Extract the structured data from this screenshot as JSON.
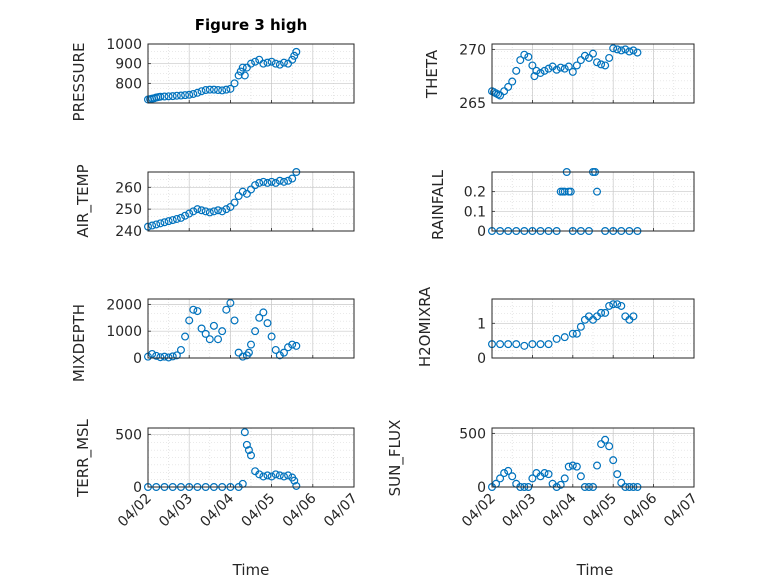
{
  "chart_data": [
    {
      "type": "scatter",
      "title": "Figure 3 high",
      "ylabel": "PRESSURE",
      "ylim": [
        700,
        1000
      ],
      "yticks": [
        "800",
        "900",
        "1000"
      ],
      "x": [
        0,
        0.05,
        0.1,
        0.15,
        0.2,
        0.25,
        0.3,
        0.4,
        0.5,
        0.6,
        0.7,
        0.8,
        0.9,
        1.0,
        1.1,
        1.2,
        1.3,
        1.4,
        1.5,
        1.6,
        1.7,
        1.8,
        1.9,
        2.0,
        2.1,
        2.2,
        2.25,
        2.3,
        2.35,
        2.4,
        2.5,
        2.6,
        2.7,
        2.8,
        2.9,
        3.0,
        3.1,
        3.2,
        3.3,
        3.4,
        3.5,
        3.55,
        3.6
      ],
      "values": [
        718,
        720,
        722,
        724,
        728,
        730,
        732,
        733,
        734,
        735,
        737,
        738,
        740,
        742,
        746,
        752,
        760,
        766,
        768,
        768,
        766,
        764,
        768,
        772,
        800,
        840,
        860,
        880,
        840,
        880,
        900,
        910,
        920,
        900,
        905,
        910,
        900,
        895,
        905,
        900,
        920,
        940,
        960
      ]
    },
    {
      "type": "scatter",
      "ylabel": "THETA",
      "ylim": [
        265,
        270.5
      ],
      "yticks": [
        "265",
        "270"
      ],
      "x": [
        0,
        0.05,
        0.1,
        0.15,
        0.2,
        0.3,
        0.4,
        0.5,
        0.6,
        0.7,
        0.8,
        0.9,
        1.0,
        1.05,
        1.1,
        1.2,
        1.3,
        1.4,
        1.5,
        1.6,
        1.7,
        1.8,
        1.9,
        2.0,
        2.1,
        2.2,
        2.3,
        2.4,
        2.5,
        2.6,
        2.7,
        2.8,
        2.9,
        3.0,
        3.1,
        3.2,
        3.3,
        3.4,
        3.5,
        3.6
      ],
      "values": [
        266.1,
        266.0,
        265.9,
        265.8,
        265.7,
        266.1,
        266.5,
        267.0,
        268.0,
        269.0,
        269.5,
        269.3,
        268.5,
        267.5,
        268.0,
        267.8,
        268.0,
        268.2,
        268.4,
        268.1,
        268.3,
        268.2,
        268.4,
        267.9,
        268.5,
        269.0,
        269.4,
        269.2,
        269.6,
        268.8,
        268.6,
        268.5,
        269.2,
        270.1,
        270.0,
        269.9,
        270.0,
        269.8,
        269.9,
        269.7
      ]
    },
    {
      "type": "scatter",
      "ylabel": "AIR_TEMP",
      "ylim": [
        240,
        267
      ],
      "yticks": [
        "240",
        "250",
        "260"
      ],
      "x": [
        0,
        0.1,
        0.2,
        0.3,
        0.4,
        0.5,
        0.6,
        0.7,
        0.8,
        0.9,
        1.0,
        1.1,
        1.2,
        1.3,
        1.4,
        1.5,
        1.6,
        1.7,
        1.8,
        1.9,
        2.0,
        2.1,
        2.2,
        2.3,
        2.4,
        2.5,
        2.6,
        2.7,
        2.8,
        2.9,
        3.0,
        3.1,
        3.2,
        3.3,
        3.4,
        3.5,
        3.6
      ],
      "values": [
        242,
        242.5,
        243,
        243.5,
        244,
        244.5,
        245,
        245.5,
        246,
        247,
        248,
        249,
        250,
        249.5,
        249,
        248.5,
        249,
        249.5,
        249,
        250,
        251,
        253,
        256,
        258,
        257,
        259,
        261,
        262,
        262.5,
        262,
        262.5,
        262,
        263,
        262.5,
        263,
        264,
        267
      ]
    },
    {
      "type": "scatter",
      "ylabel": "RAINFALL",
      "ylim": [
        0,
        0.3
      ],
      "yticks": [
        "0",
        "0.1",
        "0.2"
      ],
      "x": [
        0,
        0.2,
        0.4,
        0.6,
        0.8,
        1.0,
        1.2,
        1.4,
        1.6,
        1.7,
        1.75,
        1.8,
        1.85,
        1.9,
        1.95,
        2.0,
        2.2,
        2.4,
        2.5,
        2.55,
        2.6,
        2.8,
        3.0,
        3.2,
        3.4,
        3.6
      ],
      "values": [
        0,
        0,
        0,
        0,
        0,
        0,
        0,
        0,
        0,
        0.2,
        0.2,
        0.2,
        0.3,
        0.2,
        0.2,
        0,
        0,
        0,
        0.3,
        0.3,
        0.2,
        0,
        0,
        0,
        0,
        0
      ]
    },
    {
      "type": "scatter",
      "ylabel": "MIXDEPTH",
      "ylim": [
        0,
        2200
      ],
      "yticks": [
        "0",
        "1000",
        "2000"
      ],
      "x": [
        0,
        0.1,
        0.2,
        0.3,
        0.4,
        0.5,
        0.6,
        0.7,
        0.8,
        0.9,
        1.0,
        1.1,
        1.2,
        1.3,
        1.4,
        1.5,
        1.6,
        1.7,
        1.8,
        1.9,
        2.0,
        2.1,
        2.2,
        2.3,
        2.4,
        2.45,
        2.5,
        2.6,
        2.7,
        2.8,
        2.9,
        3.0,
        3.1,
        3.2,
        3.3,
        3.4,
        3.5,
        3.6
      ],
      "values": [
        50,
        150,
        80,
        30,
        50,
        20,
        60,
        100,
        300,
        800,
        1400,
        1800,
        1750,
        1100,
        900,
        700,
        1200,
        700,
        1000,
        1800,
        2050,
        1400,
        200,
        50,
        100,
        200,
        500,
        1000,
        1500,
        1700,
        1300,
        800,
        300,
        100,
        200,
        400,
        500,
        450
      ]
    },
    {
      "type": "scatter",
      "ylabel": "H2OMIXRA",
      "ylim": [
        0,
        1.7
      ],
      "yticks": [
        "0",
        "1"
      ],
      "x": [
        0,
        0.2,
        0.4,
        0.6,
        0.8,
        1.0,
        1.2,
        1.4,
        1.6,
        1.8,
        2.0,
        2.1,
        2.2,
        2.3,
        2.4,
        2.5,
        2.6,
        2.7,
        2.8,
        2.9,
        3.0,
        3.1,
        3.2,
        3.3,
        3.4,
        3.5
      ],
      "values": [
        0.4,
        0.4,
        0.4,
        0.4,
        0.35,
        0.4,
        0.4,
        0.4,
        0.55,
        0.6,
        0.7,
        0.7,
        0.9,
        1.1,
        1.2,
        1.1,
        1.2,
        1.3,
        1.3,
        1.5,
        1.55,
        1.55,
        1.5,
        1.2,
        1.1,
        1.2
      ]
    },
    {
      "type": "scatter",
      "ylabel": "TERR_MSL",
      "ylim": [
        0,
        560
      ],
      "yticks": [
        "0",
        "500"
      ],
      "xticks": [
        "04/02",
        "04/03",
        "04/04",
        "04/05",
        "04/06",
        "04/07"
      ],
      "xlabel": "Time",
      "x": [
        0,
        0.2,
        0.4,
        0.6,
        0.8,
        1.0,
        1.2,
        1.4,
        1.6,
        1.8,
        2.0,
        2.2,
        2.3,
        2.35,
        2.4,
        2.45,
        2.5,
        2.6,
        2.7,
        2.8,
        2.9,
        3.0,
        3.1,
        3.2,
        3.3,
        3.4,
        3.5,
        3.55,
        3.6
      ],
      "values": [
        0,
        0,
        0,
        0,
        0,
        0,
        0,
        0,
        0,
        0,
        0,
        0,
        30,
        520,
        400,
        350,
        300,
        150,
        120,
        100,
        110,
        100,
        120,
        110,
        100,
        110,
        90,
        60,
        10
      ]
    },
    {
      "type": "scatter",
      "ylabel": "SUN_FLUX",
      "ylim": [
        0,
        550
      ],
      "yticks": [
        "0",
        "500"
      ],
      "xticks": [
        "04/02",
        "04/03",
        "04/04",
        "04/05",
        "04/06",
        "04/07"
      ],
      "xlabel": "Time",
      "x": [
        0,
        0.1,
        0.2,
        0.3,
        0.4,
        0.5,
        0.6,
        0.7,
        0.8,
        0.9,
        1.0,
        1.1,
        1.2,
        1.3,
        1.4,
        1.5,
        1.6,
        1.7,
        1.8,
        1.9,
        2.0,
        2.1,
        2.2,
        2.3,
        2.4,
        2.5,
        2.6,
        2.7,
        2.8,
        2.9,
        3.0,
        3.1,
        3.2,
        3.3,
        3.4,
        3.5,
        3.6
      ],
      "values": [
        0,
        30,
        80,
        130,
        150,
        100,
        30,
        0,
        0,
        0,
        80,
        130,
        100,
        130,
        120,
        30,
        0,
        20,
        80,
        190,
        200,
        190,
        100,
        0,
        0,
        0,
        200,
        400,
        440,
        380,
        250,
        120,
        40,
        0,
        0,
        0,
        0
      ]
    }
  ],
  "colors": {
    "marker": "#0072BD",
    "axis": "#262626",
    "grid": "#d4d4d4"
  }
}
